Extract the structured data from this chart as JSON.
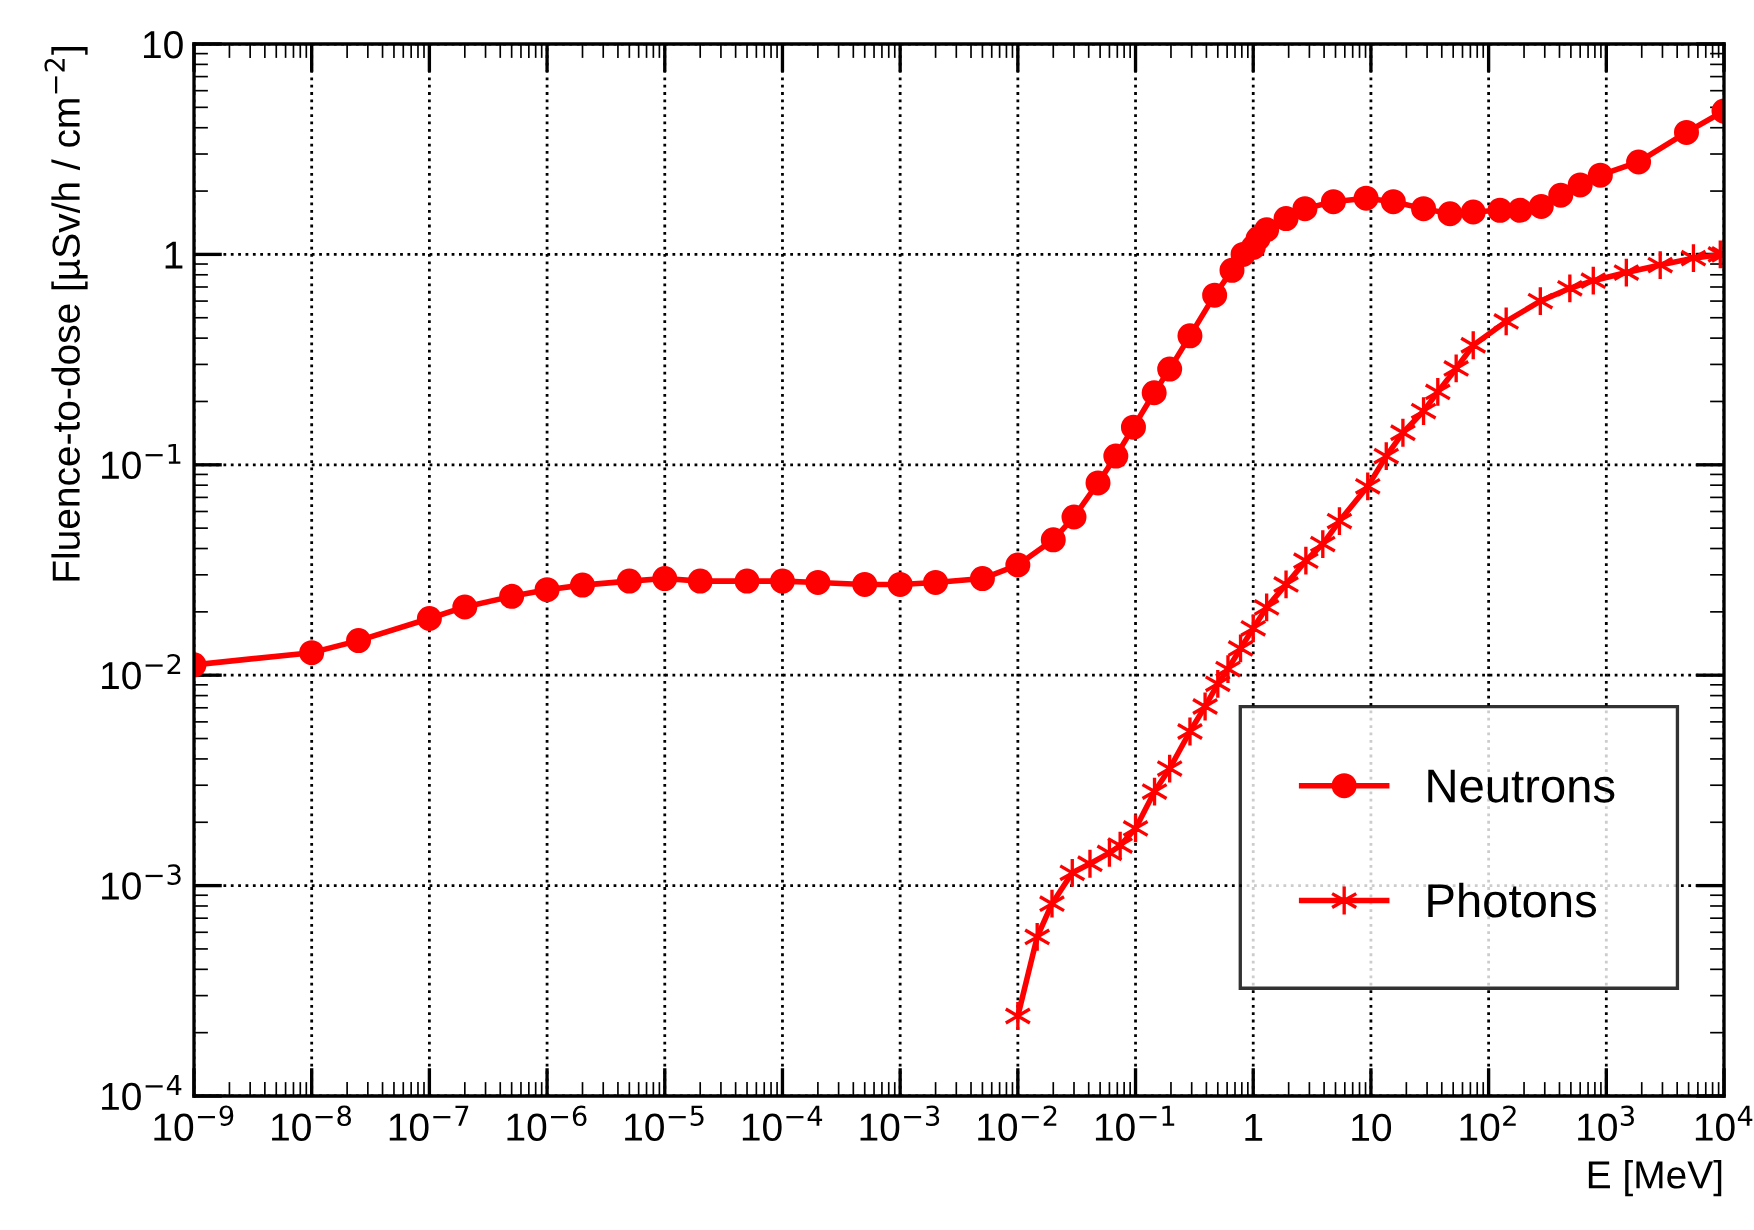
{
  "chart_data": {
    "type": "line",
    "xlabel": "E [MeV]",
    "ylabel": "Fluence-to-dose [µSv/h / cm$^{−2}$]",
    "log": "xy",
    "grid": true,
    "legend": "bottom right",
    "xlim": [
      1e-09,
      10000
    ],
    "ylim": [
      0.0001,
      10
    ],
    "xticks": [
      {
        "value": 1e-09,
        "label": "10$^{−9}$"
      },
      {
        "value": 1e-08,
        "label": "10$^{−8}$"
      },
      {
        "value": 1e-07,
        "label": "10$^{−7}$"
      },
      {
        "value": 1e-06,
        "label": "10$^{−6}$"
      },
      {
        "value": 1e-05,
        "label": "10$^{−5}$"
      },
      {
        "value": 0.0001,
        "label": "10$^{−4}$"
      },
      {
        "value": 0.001,
        "label": "10$^{−3}$"
      },
      {
        "value": 0.01,
        "label": "10$^{−2}$"
      },
      {
        "value": 0.1,
        "label": "10$^{−1}$"
      },
      1,
      10,
      {
        "value": 100,
        "label": "10$^{2}$"
      },
      {
        "value": 1000,
        "label": "10$^{3}$"
      },
      {
        "value": 10000,
        "label": "10$^{4}$"
      }
    ],
    "yticks": [
      {
        "value": 0.0001,
        "label": "10$^{−4}$"
      },
      {
        "value": 0.001,
        "label": "10$^{−3}$"
      },
      {
        "value": 0.01,
        "label": "10$^{−2}$"
      },
      {
        "value": 0.1,
        "label": "10$^{−1}$"
      },
      1,
      10
    ],
    "series": [
      {
        "name": "Neutrons",
        "color": "#ff0000",
        "marker": "circle",
        "x": [
          1e-09,
          1e-08,
          2.5e-08,
          1e-07,
          2e-07,
          5e-07,
          1e-06,
          2e-06,
          5e-06,
          1e-05,
          2e-05,
          5e-05,
          0.0001,
          0.0002,
          0.0005,
          0.001,
          0.002,
          0.005,
          0.01,
          0.02,
          0.03,
          0.048,
          0.068,
          0.096,
          0.144,
          0.195,
          0.29,
          0.47,
          0.66,
          0.82,
          1.0,
          1.1,
          1.3,
          1.9,
          2.75,
          4.8,
          9.1,
          15.5,
          28,
          47,
          74,
          125,
          185,
          280,
          410,
          600,
          890,
          1880,
          4800,
          10000
        ],
        "values": [
          0.0112,
          0.0128,
          0.0146,
          0.0186,
          0.0211,
          0.0237,
          0.0255,
          0.0268,
          0.028,
          0.0288,
          0.028,
          0.028,
          0.028,
          0.0276,
          0.027,
          0.027,
          0.0276,
          0.0288,
          0.0334,
          0.044,
          0.0565,
          0.082,
          0.11,
          0.151,
          0.22,
          0.285,
          0.41,
          0.64,
          0.84,
          1.0,
          1.08,
          1.19,
          1.31,
          1.48,
          1.65,
          1.78,
          1.85,
          1.78,
          1.65,
          1.56,
          1.59,
          1.62,
          1.62,
          1.69,
          1.91,
          2.14,
          2.38,
          2.75,
          3.8,
          4.8
        ]
      },
      {
        "name": "Photons",
        "color": "#ff0000",
        "marker": "cross",
        "x": [
          0.01,
          0.0146,
          0.0195,
          0.029,
          0.041,
          0.06,
          0.074,
          0.1,
          0.145,
          0.195,
          0.29,
          0.39,
          0.5,
          0.61,
          0.78,
          1.0,
          1.3,
          1.9,
          2.8,
          3.9,
          5.4,
          9.4,
          13.5,
          18.7,
          28,
          37,
          53,
          74,
          141,
          275,
          490,
          775,
          1480,
          2870,
          5500,
          9300,
          10000
        ],
        "values": [
          0.00024,
          0.00057,
          0.00082,
          0.00115,
          0.00127,
          0.00143,
          0.00155,
          0.00187,
          0.0028,
          0.0036,
          0.0054,
          0.0071,
          0.0091,
          0.0107,
          0.0134,
          0.0167,
          0.021,
          0.027,
          0.035,
          0.042,
          0.054,
          0.079,
          0.11,
          0.142,
          0.18,
          0.222,
          0.287,
          0.37,
          0.48,
          0.6,
          0.69,
          0.75,
          0.82,
          0.89,
          0.96,
          1.0,
          1.0
        ]
      }
    ]
  }
}
